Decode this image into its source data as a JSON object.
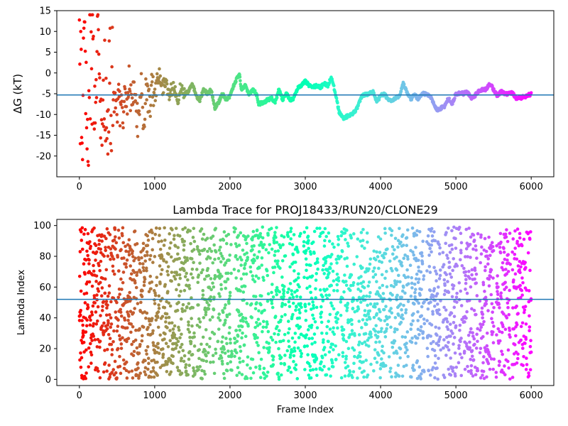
{
  "chart_data": [
    {
      "type": "scatter",
      "title": "",
      "xlabel": "",
      "ylabel": "ΔG (kT)",
      "xlim": [
        -300,
        6300
      ],
      "ylim": [
        -25,
        15
      ],
      "xticks": [
        0,
        1000,
        2000,
        3000,
        4000,
        5000,
        6000
      ],
      "yticks": [
        -20,
        -15,
        -10,
        -5,
        0,
        5,
        10,
        15
      ],
      "hline": -5.3,
      "colormap": "rainbow (red at frame 0 → violet at frame 6000)",
      "legend": "none",
      "grid": false,
      "trace": [
        [
          0,
          10
        ],
        [
          20,
          6
        ],
        [
          40,
          -20
        ],
        [
          60,
          14
        ],
        [
          80,
          2
        ],
        [
          100,
          -22
        ],
        [
          120,
          -14
        ],
        [
          140,
          11
        ],
        [
          160,
          8
        ],
        [
          180,
          14
        ],
        [
          200,
          -2
        ],
        [
          220,
          -10
        ],
        [
          240,
          12
        ],
        [
          260,
          9
        ],
        [
          280,
          -6
        ],
        [
          300,
          -14
        ],
        [
          320,
          -5
        ],
        [
          340,
          -21
        ],
        [
          360,
          -12
        ],
        [
          380,
          -4
        ],
        [
          400,
          6
        ],
        [
          420,
          -15
        ],
        [
          440,
          -10
        ],
        [
          460,
          -8
        ],
        [
          480,
          -6
        ],
        [
          500,
          -12
        ],
        [
          520,
          -5
        ],
        [
          540,
          -9
        ],
        [
          560,
          -4
        ],
        [
          580,
          -11
        ],
        [
          600,
          -3
        ],
        [
          620,
          -7
        ],
        [
          640,
          -9
        ],
        [
          660,
          -2
        ],
        [
          680,
          -6
        ],
        [
          700,
          -4
        ],
        [
          720,
          -5
        ],
        [
          740,
          -8
        ],
        [
          760,
          -10
        ],
        [
          780,
          -13
        ],
        [
          800,
          -6
        ],
        [
          820,
          -1
        ],
        [
          840,
          -9
        ],
        [
          860,
          -12
        ],
        [
          880,
          -5
        ],
        [
          900,
          -3
        ],
        [
          920,
          -7
        ],
        [
          940,
          -10
        ],
        [
          960,
          -2
        ],
        [
          980,
          -4
        ],
        [
          1000,
          -6
        ],
        [
          1050,
          0
        ],
        [
          1100,
          -4
        ],
        [
          1150,
          -2
        ],
        [
          1200,
          -5
        ],
        [
          1250,
          -3
        ],
        [
          1300,
          -6
        ],
        [
          1350,
          -4
        ],
        [
          1400,
          -5
        ],
        [
          1450,
          -4.5
        ],
        [
          1500,
          -2.5
        ],
        [
          1550,
          -5.5
        ],
        [
          1600,
          -6.5
        ],
        [
          1650,
          -4
        ],
        [
          1700,
          -5
        ],
        [
          1750,
          -4
        ],
        [
          1800,
          -8.5
        ],
        [
          1850,
          -7
        ],
        [
          1900,
          -5
        ],
        [
          1950,
          -6.5
        ],
        [
          2000,
          -5.5
        ],
        [
          2050,
          -3
        ],
        [
          2100,
          -1
        ],
        [
          2125,
          0
        ],
        [
          2150,
          -4
        ],
        [
          2200,
          -3
        ],
        [
          2250,
          -5
        ],
        [
          2300,
          -4
        ],
        [
          2350,
          -5
        ],
        [
          2380,
          -7.5
        ],
        [
          2450,
          -7
        ],
        [
          2500,
          -6.5
        ],
        [
          2550,
          -6
        ],
        [
          2600,
          -7
        ],
        [
          2650,
          -4
        ],
        [
          2700,
          -6.5
        ],
        [
          2750,
          -5
        ],
        [
          2800,
          -6.5
        ],
        [
          2850,
          -6
        ],
        [
          2900,
          -3.5
        ],
        [
          2950,
          -3
        ],
        [
          3000,
          -2
        ],
        [
          3050,
          -3
        ],
        [
          3100,
          -3.5
        ],
        [
          3150,
          -3
        ],
        [
          3200,
          -3.5
        ],
        [
          3250,
          -2.5
        ],
        [
          3300,
          -3
        ],
        [
          3350,
          -1
        ],
        [
          3400,
          -5
        ],
        [
          3450,
          -9.5
        ],
        [
          3500,
          -11
        ],
        [
          3550,
          -10.5
        ],
        [
          3600,
          -10
        ],
        [
          3650,
          -9.5
        ],
        [
          3700,
          -8
        ],
        [
          3750,
          -5.5
        ],
        [
          3800,
          -5.2
        ],
        [
          3850,
          -5
        ],
        [
          3900,
          -4.5
        ],
        [
          3950,
          -7
        ],
        [
          4000,
          -5.5
        ],
        [
          4050,
          -5
        ],
        [
          4100,
          -6.5
        ],
        [
          4150,
          -6.8
        ],
        [
          4200,
          -6
        ],
        [
          4250,
          -5.5
        ],
        [
          4300,
          -2.5
        ],
        [
          4350,
          -4.5
        ],
        [
          4400,
          -6.5
        ],
        [
          4450,
          -5
        ],
        [
          4500,
          -6.5
        ],
        [
          4550,
          -5
        ],
        [
          4600,
          -5
        ],
        [
          4650,
          -5.5
        ],
        [
          4700,
          -7
        ],
        [
          4750,
          -9
        ],
        [
          4800,
          -8.5
        ],
        [
          4850,
          -8
        ],
        [
          4900,
          -6
        ],
        [
          4950,
          -7.5
        ],
        [
          5000,
          -5
        ],
        [
          5050,
          -4.8
        ],
        [
          5100,
          -5
        ],
        [
          5150,
          -4.5
        ],
        [
          5200,
          -6
        ],
        [
          5250,
          -5.5
        ],
        [
          5300,
          -4.5
        ],
        [
          5350,
          -4
        ],
        [
          5400,
          -4
        ],
        [
          5450,
          -2.5
        ],
        [
          5500,
          -4
        ],
        [
          5550,
          -5.5
        ],
        [
          5600,
          -4.5
        ],
        [
          5650,
          -5
        ],
        [
          5700,
          -5
        ],
        [
          5750,
          -4.8
        ],
        [
          5800,
          -6
        ],
        [
          5850,
          -6
        ],
        [
          5900,
          -5.8
        ],
        [
          5950,
          -5.5
        ],
        [
          6000,
          -5
        ]
      ]
    },
    {
      "type": "scatter",
      "title": "Lambda Trace for PROJ18433/RUN20/CLONE29",
      "xlabel": "Frame Index",
      "ylabel": "Lambda Index",
      "xlim": [
        -300,
        6300
      ],
      "ylim": [
        -4,
        104
      ],
      "xticks": [
        0,
        1000,
        2000,
        3000,
        4000,
        5000,
        6000
      ],
      "yticks": [
        0,
        20,
        40,
        60,
        80,
        100
      ],
      "hline": 52,
      "value_range": [
        0,
        99
      ],
      "colormap": "rainbow (red at frame 0 → violet at frame 6000)",
      "legend": "none",
      "grid": false
    }
  ]
}
